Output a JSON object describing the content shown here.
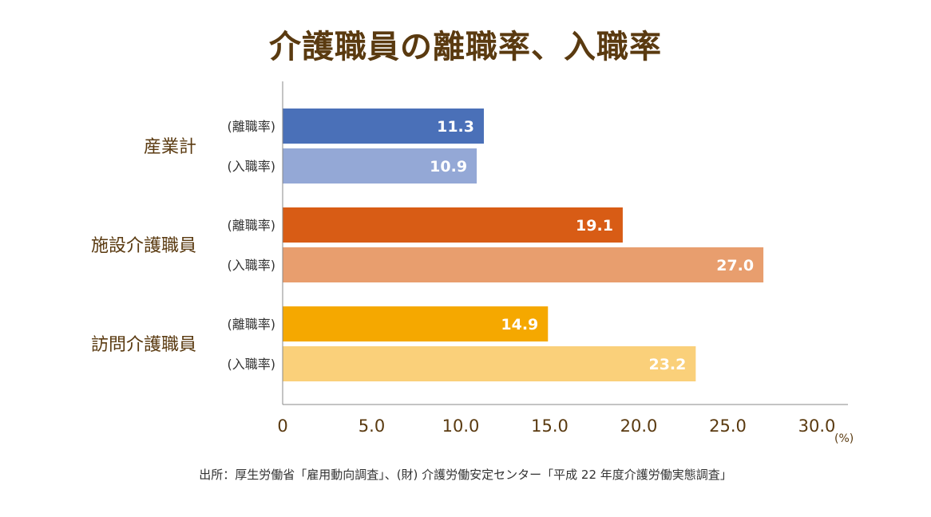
{
  "chart_data": {
    "type": "bar",
    "orientation": "horizontal",
    "title": "介護職員の離職率、入職率",
    "categories": [
      "産業計",
      "施設介護職員",
      "訪問介護職員"
    ],
    "sub_labels": [
      "(離職率)",
      "(入職率)"
    ],
    "bars": [
      {
        "category": "産業計",
        "sub": "(離職率)",
        "value": 11.3,
        "color": "#4a70b8"
      },
      {
        "category": "産業計",
        "sub": "(入職率)",
        "value": 10.9,
        "color": "#94a8d6"
      },
      {
        "category": "施設介護職員",
        "sub": "(離職率)",
        "value": 19.1,
        "color": "#d85c15"
      },
      {
        "category": "施設介護職員",
        "sub": "(入職率)",
        "value": 27.0,
        "color": "#e89e6e"
      },
      {
        "category": "訪問介護職員",
        "sub": "(離職率)",
        "value": 14.9,
        "color": "#f5a800"
      },
      {
        "category": "訪問介護職員",
        "sub": "(入職率)",
        "value": 23.2,
        "color": "#fad07a"
      }
    ],
    "xticks": [
      "0",
      "5.0",
      "10.0",
      "15.0",
      "20.0",
      "25.0",
      "30.0"
    ],
    "xlim": [
      0,
      32
    ],
    "unit": "(%)",
    "grid": false,
    "legend": "none"
  },
  "source": "出所：厚生労働省「雇用動向調査」、(財) 介護労働安定センター「平成 22 年度介護労働実態調査」"
}
